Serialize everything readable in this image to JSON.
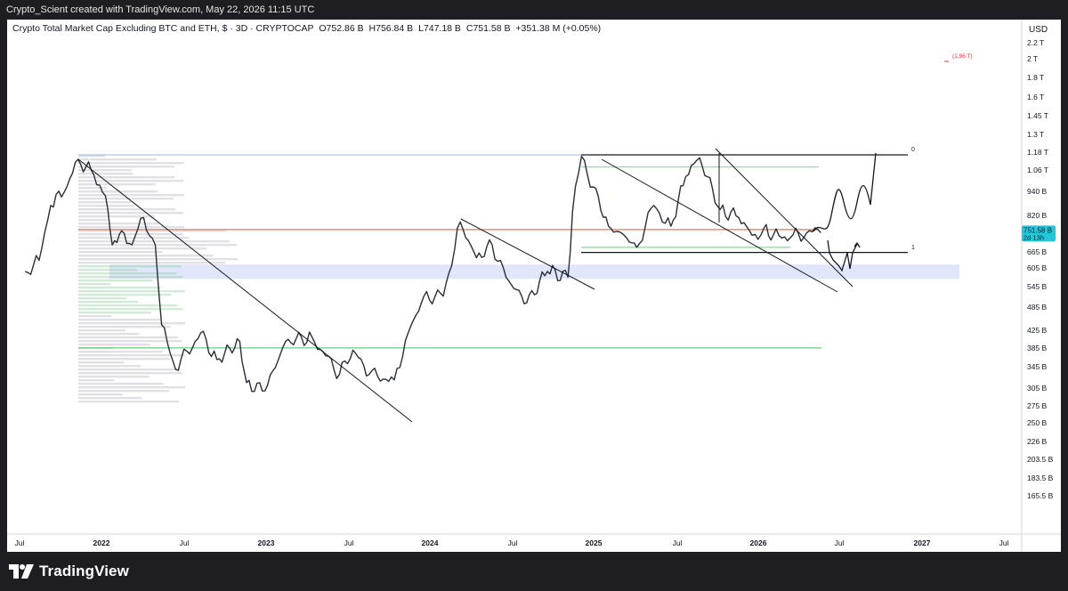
{
  "header": {
    "attribution": "Crypto_Scient created with TradingView.com, May 22, 2026 11:15 UTC"
  },
  "legend": {
    "symbol_title": "Crypto Total Market Cap Excluding BTC and ETH, $ · 3D · CRYPTOCAP",
    "open": "O752.86 B",
    "high": "H756.84 B",
    "low": "L747.18 B",
    "close": "C751.58 B",
    "change": "+351.38 M (+0.05%)"
  },
  "currency": "USD",
  "price_label": {
    "value": "751.58 B",
    "countdown": "2d 13h",
    "color": "#26c6da"
  },
  "annotations": {
    "target_label": "(1.96 T)",
    "fib_0": "0",
    "fib_1": "1"
  },
  "footer": {
    "brand": "TradingView",
    "logo_icon": "tradingview-logo-icon"
  },
  "chart_data": {
    "type": "line",
    "title": "Crypto Total Market Cap Excluding BTC and ETH, $ · 3D · CRYPTOCAP",
    "scale": "log",
    "y_unit": "USD",
    "x_tick_labels": [
      "Jul",
      "2022",
      "Jul",
      "2023",
      "Jul",
      "2024",
      "Jul",
      "2025",
      "Jul",
      "2026",
      "Jul",
      "2027",
      "Jul"
    ],
    "y_tick_labels": [
      "2.2 T",
      "2 T",
      "1.8 T",
      "1.6 T",
      "1.45 T",
      "1.3 T",
      "1.18 T",
      "1.06 T",
      "940 B",
      "820 B",
      "665 B",
      "605 B",
      "545 B",
      "485 B",
      "425 B",
      "385 B",
      "345 B",
      "305 B",
      "275 B",
      "250 B",
      "226 B",
      "203.5 B",
      "183.5 B",
      "165.5 B"
    ],
    "series": [
      {
        "points": [
          [
            "2021-07-15",
            600
          ],
          [
            "2021-08-15",
            640
          ],
          [
            "2021-09-10",
            880
          ],
          [
            "2021-10-10",
            950
          ],
          [
            "2021-11-10",
            1150
          ],
          [
            "2021-12-15",
            1050
          ],
          [
            "2022-01-10",
            930
          ],
          [
            "2022-01-25",
            700
          ],
          [
            "2022-02-15",
            760
          ],
          [
            "2022-03-10",
            700
          ],
          [
            "2022-04-05",
            820
          ],
          [
            "2022-05-01",
            700
          ],
          [
            "2022-05-15",
            440
          ],
          [
            "2022-06-15",
            340
          ],
          [
            "2022-08-10",
            420
          ],
          [
            "2022-09-15",
            360
          ],
          [
            "2022-11-05",
            400
          ],
          [
            "2022-11-20",
            315
          ],
          [
            "2022-12-31",
            300
          ],
          [
            "2023-02-15",
            400
          ],
          [
            "2023-04-15",
            410
          ],
          [
            "2023-06-15",
            330
          ],
          [
            "2023-07-15",
            380
          ],
          [
            "2023-08-20",
            330
          ],
          [
            "2023-10-15",
            320
          ],
          [
            "2023-11-15",
            420
          ],
          [
            "2023-12-20",
            520
          ],
          [
            "2024-02-01",
            520
          ],
          [
            "2024-03-10",
            800
          ],
          [
            "2024-04-15",
            650
          ],
          [
            "2024-05-20",
            700
          ],
          [
            "2024-06-20",
            580
          ],
          [
            "2024-08-05",
            500
          ],
          [
            "2024-09-20",
            600
          ],
          [
            "2024-11-05",
            580
          ],
          [
            "2024-11-15",
            850
          ],
          [
            "2024-12-05",
            1170
          ],
          [
            "2024-12-31",
            980
          ],
          [
            "2025-02-03",
            780
          ],
          [
            "2025-03-10",
            740
          ],
          [
            "2025-04-07",
            690
          ],
          [
            "2025-05-15",
            880
          ],
          [
            "2025-06-22",
            780
          ],
          [
            "2025-07-25",
            1040
          ],
          [
            "2025-08-25",
            1160
          ],
          [
            "2025-10-10",
            860
          ],
          [
            "2025-11-20",
            820
          ],
          [
            "2025-12-20",
            740
          ],
          [
            "2026-01-15",
            770
          ],
          [
            "2026-02-05",
            740
          ],
          [
            "2026-03-15",
            730
          ],
          [
            "2026-04-20",
            750
          ],
          [
            "2026-05-22",
            751.58
          ]
        ]
      }
    ],
    "horizontal_levels": [
      1180,
      1100,
      765,
      670,
      385
    ],
    "highlight_zone": [
      575,
      625
    ]
  }
}
